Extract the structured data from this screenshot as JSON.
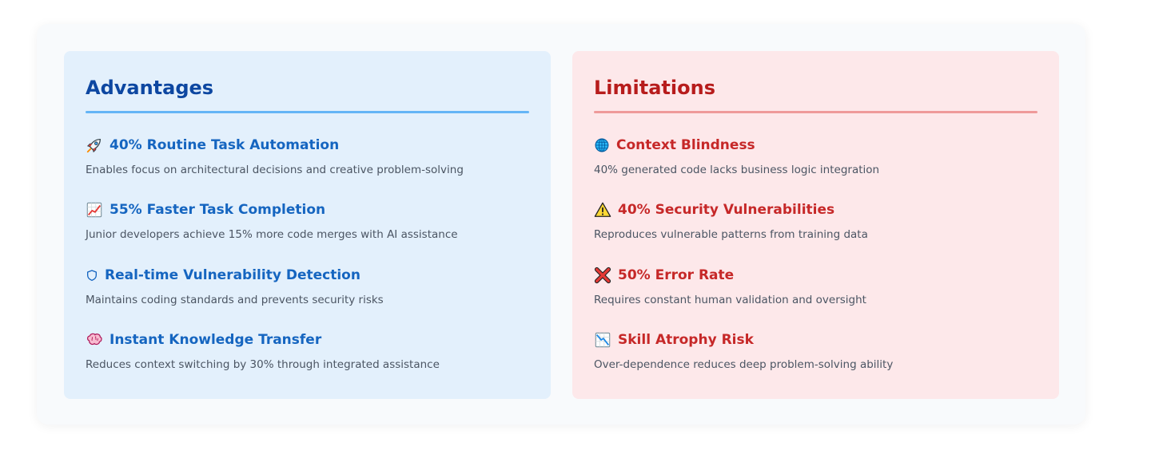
{
  "advantages": {
    "title": "Advantages",
    "items": [
      {
        "icon": "rocket-icon",
        "title": "40% Routine Task Automation",
        "desc": "Enables focus on architectural decisions and creative problem-solving"
      },
      {
        "icon": "chart-increasing-icon",
        "title": "55% Faster Task Completion",
        "desc": "Junior developers achieve 15% more code merges with AI assistance"
      },
      {
        "icon": "shield-icon",
        "title": "Real-time Vulnerability Detection",
        "desc": "Maintains coding standards and prevents security risks"
      },
      {
        "icon": "brain-icon",
        "title": "Instant Knowledge Transfer",
        "desc": "Reduces context switching by 30% through integrated assistance"
      }
    ]
  },
  "limitations": {
    "title": "Limitations",
    "items": [
      {
        "icon": "globe-icon",
        "title": "Context Blindness",
        "desc": "40% generated code lacks business logic integration"
      },
      {
        "icon": "warning-icon",
        "title": "40% Security Vulnerabilities",
        "desc": "Reproduces vulnerable patterns from training data"
      },
      {
        "icon": "cross-mark-icon",
        "title": "50% Error Rate",
        "desc": "Requires constant human validation and oversight"
      },
      {
        "icon": "chart-decreasing-icon",
        "title": "Skill Atrophy Risk",
        "desc": "Over-dependence reduces deep problem-solving ability"
      }
    ]
  },
  "colors": {
    "advantages_bg": "#e3f0fc",
    "advantages_accent": "#1565c0",
    "limitations_bg": "#fde8ea",
    "limitations_accent": "#c62828"
  }
}
